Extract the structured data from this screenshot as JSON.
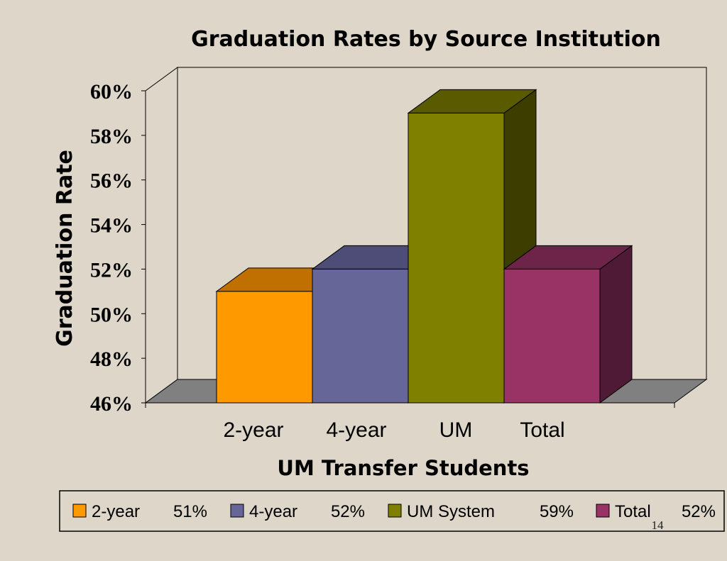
{
  "chart_data": {
    "type": "bar",
    "title": "Graduation Rates by Source Institution",
    "ylabel": "Graduation Rate",
    "xlabel": "UM Transfer Students",
    "ylim": [
      46,
      60
    ],
    "yticks": [
      "46%",
      "48%",
      "50%",
      "52%",
      "54%",
      "56%",
      "58%",
      "60%"
    ],
    "ytick_values": [
      46,
      48,
      50,
      52,
      54,
      56,
      58,
      60
    ],
    "categories": [
      "2-year",
      "4-year",
      "UM",
      "Total"
    ],
    "values": [
      51,
      52,
      59,
      52
    ],
    "colors": [
      "#ff9900",
      "#666699",
      "#808000",
      "#993366"
    ],
    "side_colors": [
      "#a86400",
      "#3e3e66",
      "#3d3d00",
      "#4e1a35"
    ],
    "top_colors": [
      "#c07000",
      "#4d4d77",
      "#5a5a00",
      "#6e2449"
    ],
    "grid": false,
    "legend_position": "bottom",
    "legend": [
      {
        "label": "2-year",
        "value": "51%"
      },
      {
        "label": "4-year",
        "value": "52%"
      },
      {
        "label": "UM System",
        "value": "59%"
      },
      {
        "label": "Total",
        "value": "52%"
      }
    ]
  },
  "page_number": "14"
}
